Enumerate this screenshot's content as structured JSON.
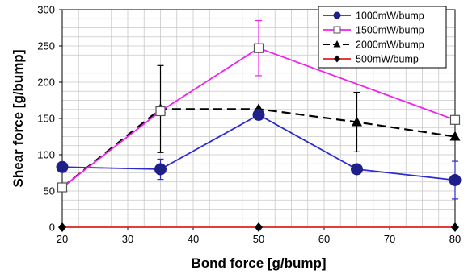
{
  "chart_data": {
    "type": "line",
    "title": "",
    "xlabel": "Bond force [g/bump]",
    "ylabel": "Shear force [g/bump]",
    "xlim": [
      20,
      80
    ],
    "ylim": [
      0,
      300
    ],
    "x_ticks": [
      20,
      30,
      40,
      50,
      60,
      70,
      80
    ],
    "y_ticks": [
      0,
      50,
      100,
      150,
      200,
      250,
      300
    ],
    "grid": true,
    "legend_position": "top-right",
    "series": [
      {
        "name": "1000mW/bump",
        "color": "#2b2bd0",
        "marker": "filled-circle",
        "line_style": "solid",
        "x": [
          20,
          35,
          50,
          65,
          80
        ],
        "y": [
          83,
          80,
          155,
          80,
          65
        ],
        "error": [
          null,
          14,
          null,
          null,
          26
        ]
      },
      {
        "name": "1500mW/bump",
        "color": "#ee22ee",
        "marker": "open-square",
        "line_style": "solid",
        "x": [
          20,
          35,
          50,
          80
        ],
        "y": [
          55,
          160,
          247,
          148
        ],
        "error": [
          null,
          null,
          38,
          null
        ]
      },
      {
        "name": "2000mW/bump",
        "color": "#000000",
        "marker": "filled-triangle",
        "line_style": "dashed",
        "x": [
          20,
          35,
          50,
          65,
          80
        ],
        "y": [
          55,
          163,
          163,
          145,
          125
        ],
        "error": [
          null,
          60,
          null,
          41,
          null
        ]
      },
      {
        "name": "500mW/bump",
        "color": "#dd2222",
        "marker": "filled-diamond",
        "line_style": "solid",
        "x": [
          20,
          50,
          80
        ],
        "y": [
          0,
          0,
          0
        ],
        "error": [
          null,
          null,
          null
        ]
      }
    ]
  }
}
